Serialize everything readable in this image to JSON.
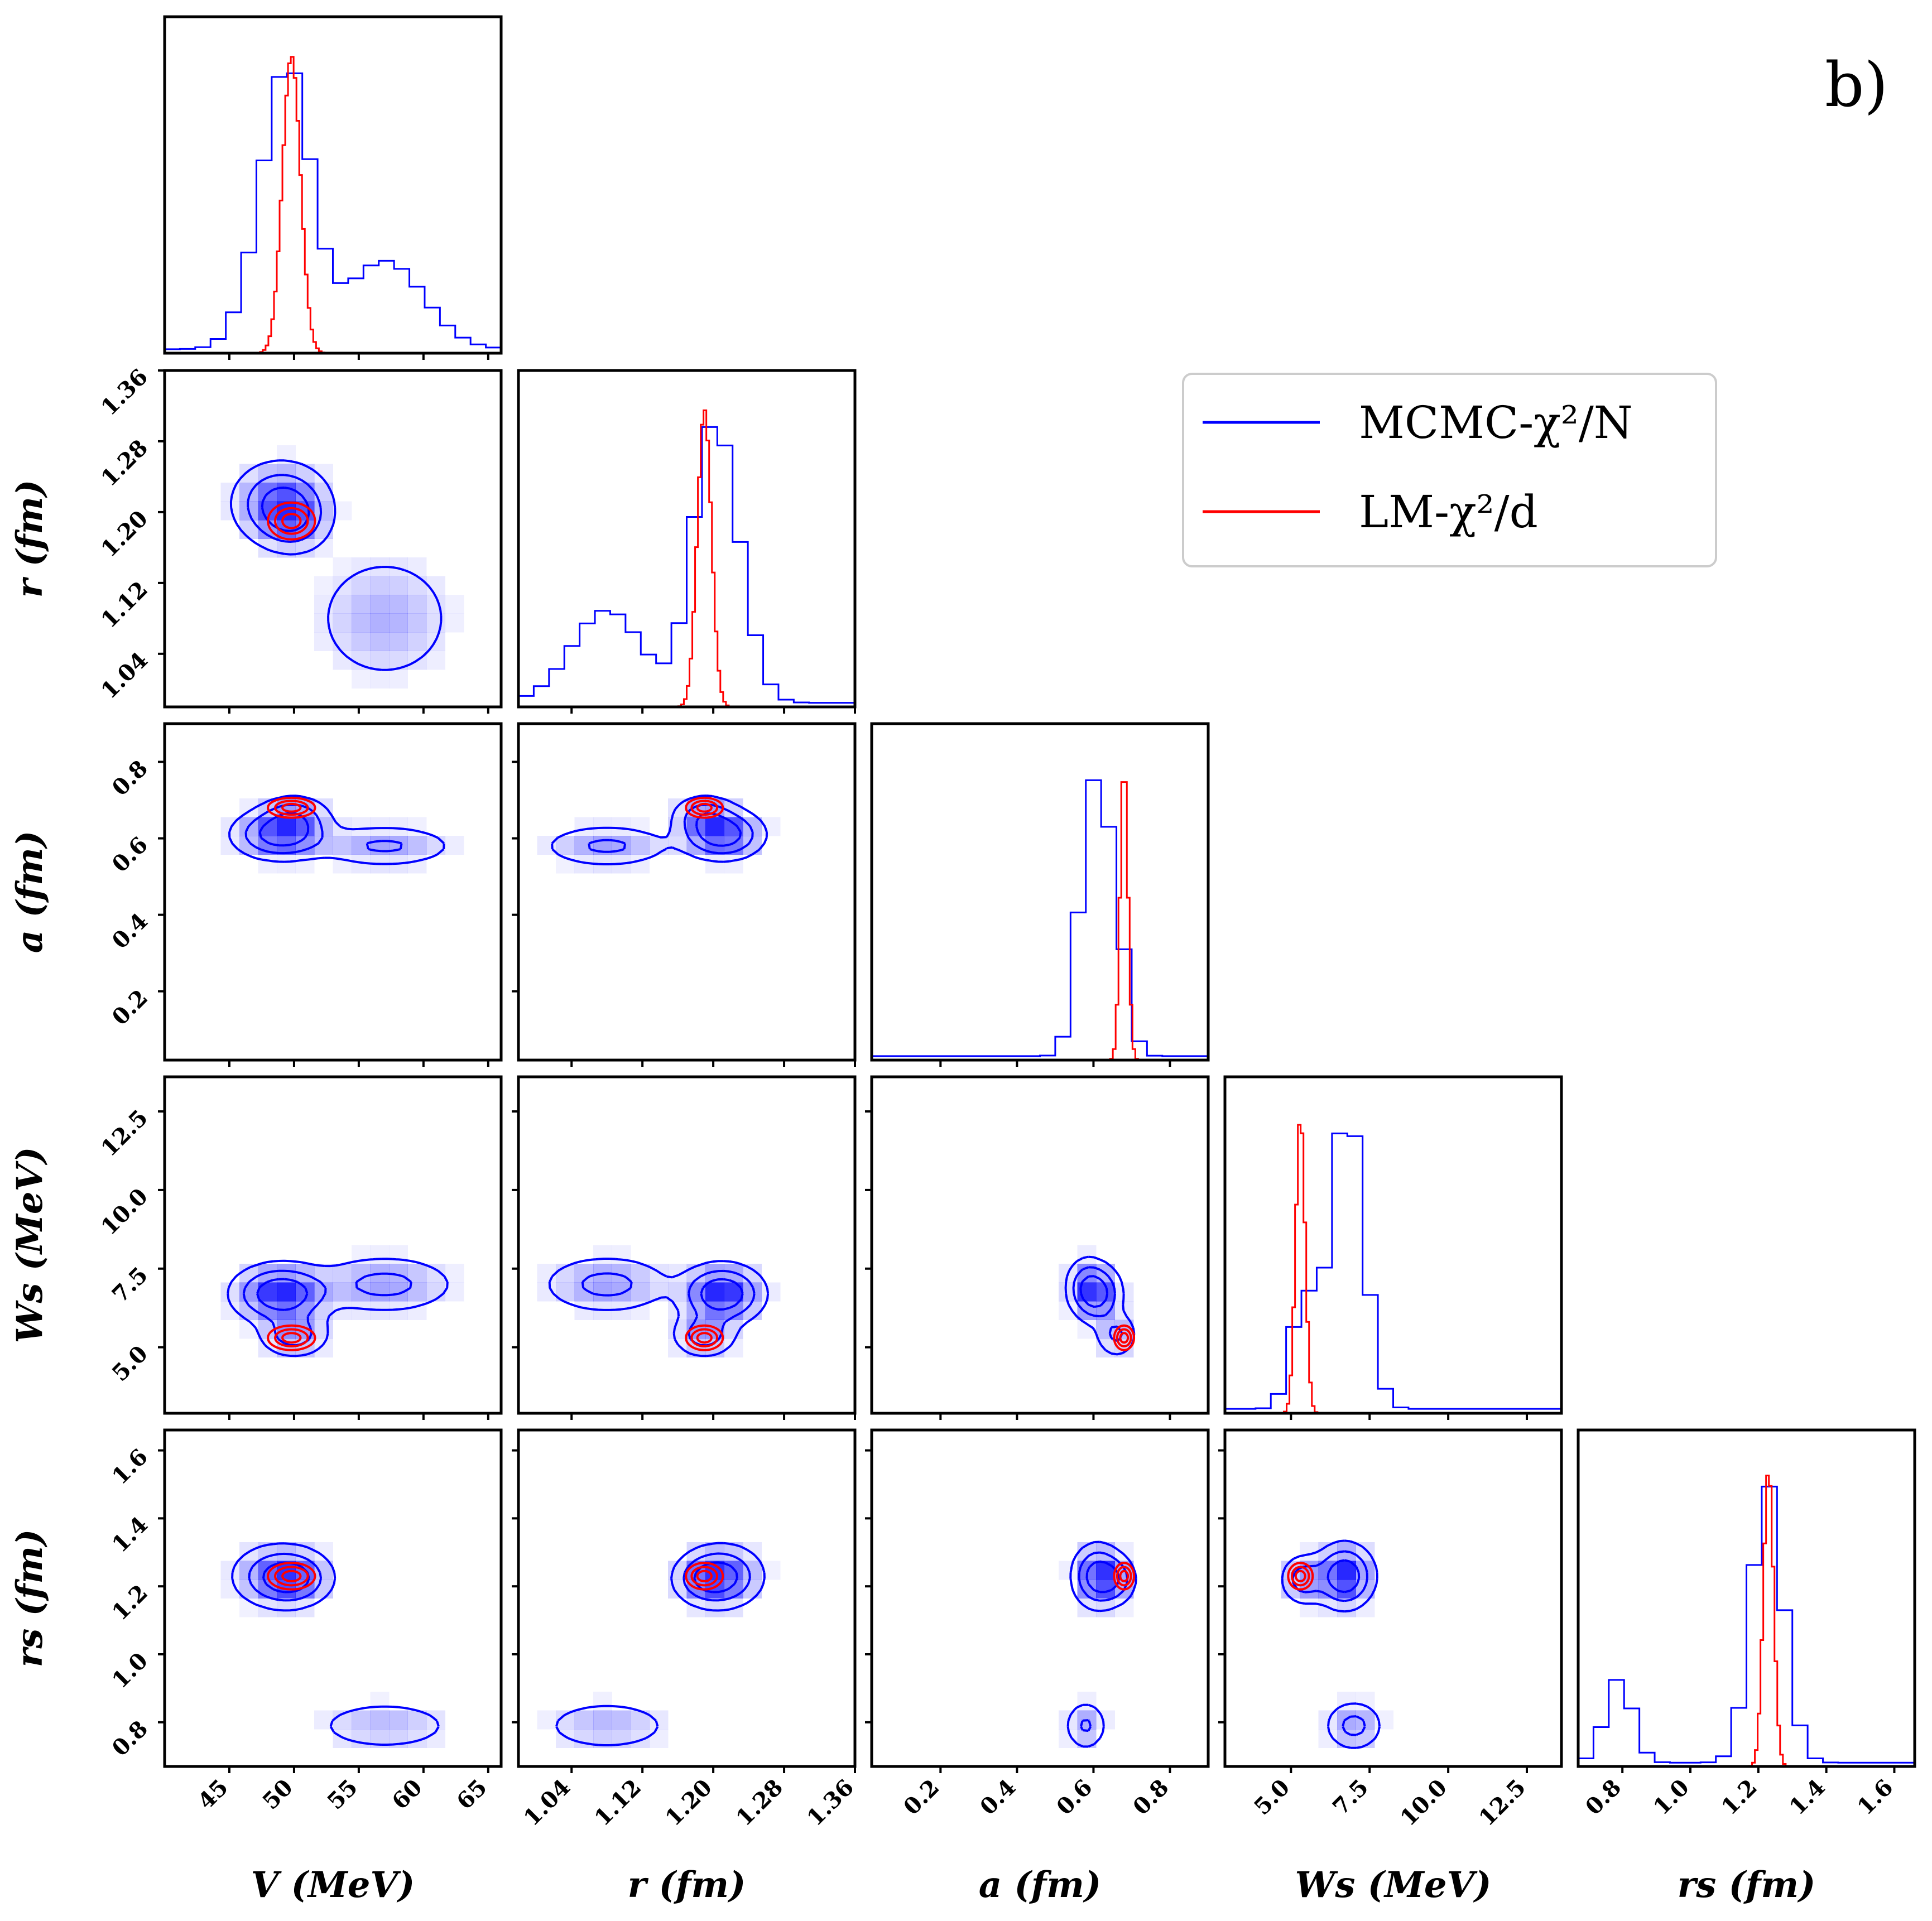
{
  "panel_label": "b)",
  "colors": {
    "mcmc": "#0000ff",
    "lm": "#ff0000",
    "frame": "#000000",
    "background": "#ffffff"
  },
  "legend": {
    "entries": [
      {
        "label": "MCMC-χ²/N",
        "color": "#0000ff"
      },
      {
        "label": "LM-χ²/d",
        "color": "#ff0000"
      }
    ]
  },
  "chart_data": {
    "type": "corner",
    "title": "b)",
    "series": [
      "MCMC-χ²/N",
      "LM-χ²/d"
    ],
    "parameters": [
      {
        "key": "V",
        "label": "V (MeV)",
        "range": [
          40,
          66
        ],
        "ticks": [
          45,
          50,
          55,
          60,
          65
        ],
        "tick_labels": [
          "45",
          "50",
          "55",
          "60",
          "65"
        ]
      },
      {
        "key": "r",
        "label": "r (fm)",
        "range": [
          0.98,
          1.36
        ],
        "ticks": [
          1.04,
          1.12,
          1.2,
          1.28,
          1.36
        ],
        "tick_labels": [
          "1.04",
          "1.12",
          "1.20",
          "1.28",
          "1.36"
        ]
      },
      {
        "key": "a",
        "label": "a (fm)",
        "range": [
          0.02,
          0.9
        ],
        "ticks": [
          0.2,
          0.4,
          0.6,
          0.8
        ],
        "tick_labels": [
          "0.2",
          "0.4",
          "0.6",
          "0.8"
        ]
      },
      {
        "key": "Ws",
        "label": "Ws (MeV)",
        "range": [
          2.9,
          13.6
        ],
        "ticks": [
          5.0,
          7.5,
          10.0,
          12.5
        ],
        "tick_labels": [
          "5.0",
          "7.5",
          "10.0",
          "12.5"
        ]
      },
      {
        "key": "rs",
        "label": "rs (fm)",
        "range": [
          0.67,
          1.66
        ],
        "ticks": [
          0.8,
          1.0,
          1.2,
          1.4,
          1.6
        ],
        "tick_labels": [
          "0.8",
          "1.0",
          "1.2",
          "1.4",
          "1.6"
        ]
      }
    ],
    "mcmc_modes": [
      {
        "V": 49,
        "r": 1.21,
        "a": 0.61,
        "Ws": 6.7,
        "rs": 1.23,
        "weight": 1.0,
        "spread": {
          "V": 2.0,
          "r": 0.025,
          "a": 0.035,
          "Ws": 0.5,
          "rs": 0.05
        }
      },
      {
        "V": 50,
        "r": 1.19,
        "a": 0.66,
        "Ws": 5.4,
        "rs": 1.22,
        "weight": 0.5,
        "spread": {
          "V": 1.5,
          "r": 0.02,
          "a": 0.03,
          "Ws": 0.4,
          "rs": 0.04
        }
      },
      {
        "V": 57,
        "r": 1.08,
        "a": 0.58,
        "Ws": 7.0,
        "rs": 0.79,
        "weight": 0.45,
        "spread": {
          "V": 3.0,
          "r": 0.04,
          "a": 0.03,
          "Ws": 0.5,
          "rs": 0.04
        }
      }
    ],
    "lm_estimate": {
      "V": {
        "mean": 49.8,
        "sd": 0.7
      },
      "r": {
        "mean": 1.19,
        "sd": 0.008
      },
      "a": {
        "mean": 0.68,
        "sd": 0.01
      },
      "Ws": {
        "mean": 5.3,
        "sd": 0.15
      },
      "rs": {
        "mean": 1.23,
        "sd": 0.015
      }
    },
    "diagonal_histograms": {
      "V": {
        "mcmc_peak": 50,
        "lm_peak": 49.8
      },
      "r": {
        "mcmc_peak": 1.2,
        "lm_peak": 1.19
      },
      "a": {
        "mcmc_peak": 0.61,
        "lm_peak": 0.68
      },
      "Ws": {
        "mcmc_peak": 6.9,
        "lm_peak": 5.3
      },
      "rs": {
        "mcmc_peak": 1.22,
        "lm_peak": 1.23
      }
    }
  }
}
